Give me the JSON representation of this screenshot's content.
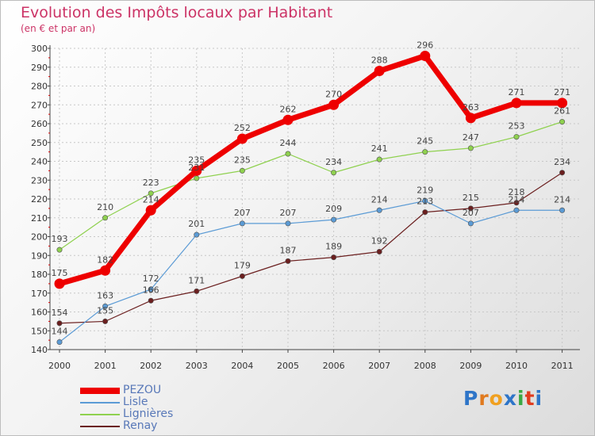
{
  "chart_data": {
    "type": "line",
    "title": "Evolution des Impôts locaux par Habitant",
    "subtitle": "(en € et par an)",
    "xlabel": "",
    "ylabel": "",
    "ylim": [
      140,
      300
    ],
    "ytick_step": 10,
    "ytick_labels": [
      "140",
      "150",
      "160",
      "170",
      "180",
      "190",
      "200",
      "210",
      "220",
      "230",
      "240",
      "250",
      "260",
      "270",
      "280",
      "290",
      "300"
    ],
    "categories": [
      "2000",
      "2001",
      "2002",
      "2003",
      "2004",
      "2005",
      "2006",
      "2007",
      "2008",
      "2009",
      "2010",
      "2011"
    ],
    "grid": true,
    "legend_position": "bottom-left",
    "series": [
      {
        "name": "PEZOU",
        "color": "#ee0000",
        "values": [
          175,
          182,
          214,
          235,
          252,
          262,
          270,
          288,
          296,
          263,
          271,
          271
        ],
        "labels": [
          "175",
          "182",
          "214",
          "235",
          "252",
          "262",
          "270",
          "288",
          "296",
          "263",
          "271",
          "271"
        ]
      },
      {
        "name": "Lisle",
        "color": "#5b9bd5",
        "values": [
          144,
          163,
          172,
          201,
          207,
          207,
          209,
          214,
          219,
          207,
          214,
          214
        ],
        "labels": [
          "144",
          "163",
          "172",
          "201",
          "207",
          "207",
          "209",
          "214",
          "219",
          "207",
          "214",
          "214"
        ]
      },
      {
        "name": "Lignières",
        "color": "#8fd14f",
        "values": [
          193,
          210,
          223,
          231,
          235,
          244,
          234,
          241,
          245,
          247,
          253,
          261
        ],
        "labels": [
          "193",
          "210",
          "223",
          "231",
          "235",
          "244",
          "234",
          "241",
          "245",
          "247",
          "253",
          "261"
        ]
      },
      {
        "name": "Renay",
        "color": "#6b1f1f",
        "values": [
          154,
          155,
          166,
          171,
          179,
          187,
          189,
          192,
          213,
          215,
          218,
          234
        ],
        "labels": [
          "154",
          "155",
          "166",
          "171",
          "179",
          "187",
          "189",
          "192",
          "213",
          "215",
          "218",
          "234"
        ]
      }
    ]
  },
  "logo": {
    "letters": [
      "P",
      "r",
      "o",
      "x",
      "i",
      "t",
      "i"
    ],
    "colors": [
      "#2e75c8",
      "#e07a1f",
      "#f0a020",
      "#2e75c8",
      "#3aa843",
      "#e03c1f",
      "#2e75c8"
    ]
  }
}
